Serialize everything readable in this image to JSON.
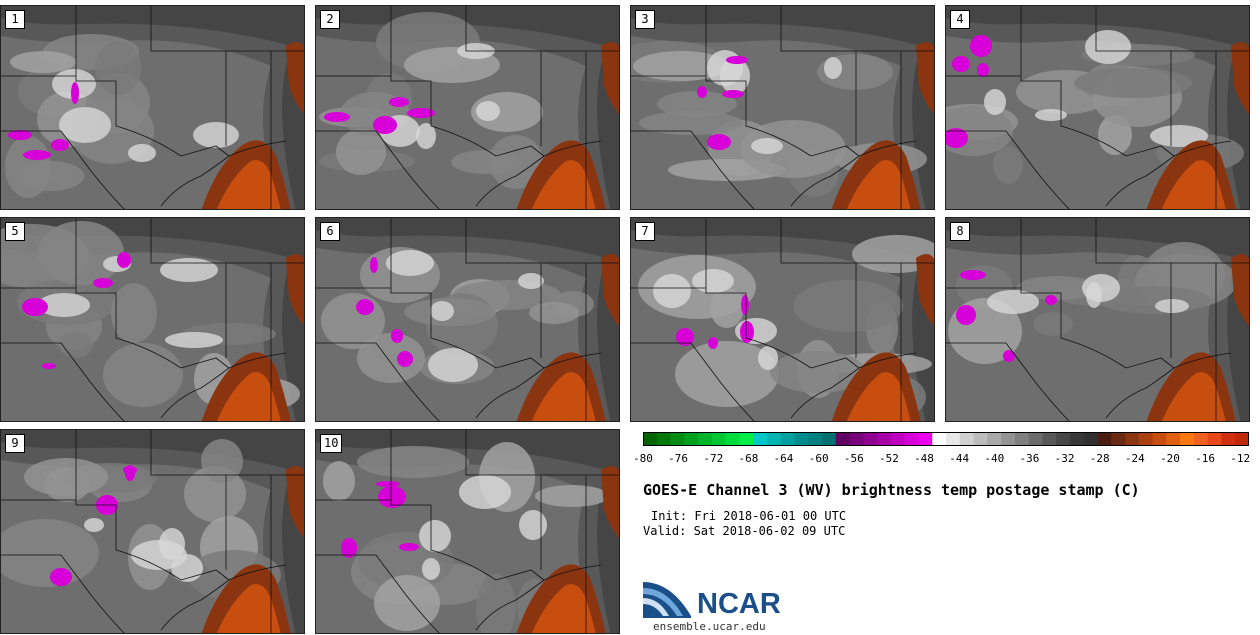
{
  "figure": {
    "title": "GOES-E Channel 3 (WV) brightness temp postage stamp (C)",
    "init": "Init: Fri 2018-06-01 00 UTC",
    "valid": "Valid: Sat 2018-06-02 09 UTC",
    "org": "NCAR",
    "url": "ensemble.ucar.edu"
  },
  "panels": [
    {
      "label": "1"
    },
    {
      "label": "2"
    },
    {
      "label": "3"
    },
    {
      "label": "4"
    },
    {
      "label": "5"
    },
    {
      "label": "6"
    },
    {
      "label": "7"
    },
    {
      "label": "8"
    },
    {
      "label": "9"
    },
    {
      "label": "10"
    }
  ],
  "colorbar": {
    "ticks": [
      "-80",
      "-76",
      "-72",
      "-68",
      "-64",
      "-60",
      "-56",
      "-52",
      "-48",
      "-44",
      "-40",
      "-36",
      "-32",
      "-28",
      "-24",
      "-20",
      "-16",
      "-12"
    ],
    "min": -80,
    "max": -11,
    "colors": [
      "#006400",
      "#00780a",
      "#008c14",
      "#00a01e",
      "#00b428",
      "#00c832",
      "#00dc3c",
      "#00ee48",
      "#00c8c8",
      "#00b4b4",
      "#00a0a0",
      "#008c8c",
      "#008080",
      "#007070",
      "#600060",
      "#780078",
      "#900090",
      "#a800a8",
      "#c000c0",
      "#d800d8",
      "#ee00ee",
      "#ffffff",
      "#e8e8e8",
      "#d0d0d0",
      "#bcbcbc",
      "#a8a8a8",
      "#949494",
      "#808080",
      "#6c6c6c",
      "#585858",
      "#484848",
      "#383838",
      "#303030",
      "#4a1e10",
      "#6a2a12",
      "#8a3410",
      "#aa4010",
      "#c84e10",
      "#e06010",
      "#ff7810",
      "#f06020",
      "#e84818",
      "#d03010",
      "#c02808"
    ]
  }
}
